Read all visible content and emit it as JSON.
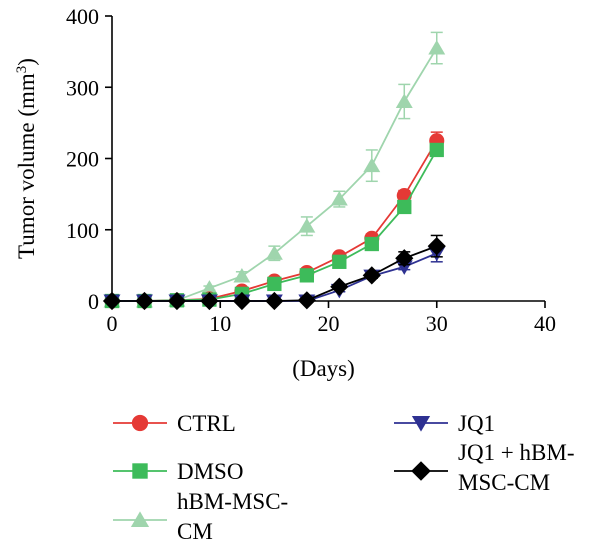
{
  "chart_data": {
    "type": "line",
    "xlabel": "(Days)",
    "ylabel": "Tumor volume (mm",
    "ylabel_sup": "3",
    "ylabel_close": ")",
    "xlim": [
      0,
      40
    ],
    "ylim": [
      0,
      400
    ],
    "xticks": [
      0,
      10,
      20,
      30,
      40
    ],
    "yticks": [
      0,
      100,
      200,
      300,
      400
    ],
    "grid": false,
    "legend_position": "bottom",
    "series": [
      {
        "name": "hBM-MSC-CM",
        "legend_lines": [
          "hBM-MSC-",
          "CM"
        ],
        "color": "#9fd5ad",
        "marker": "triangle",
        "x": [
          0,
          3,
          6,
          9,
          12,
          15,
          18,
          21,
          24,
          27,
          30
        ],
        "y": [
          0,
          0,
          1,
          18,
          35,
          67,
          105,
          143,
          190,
          280,
          355
        ],
        "err": [
          0,
          0,
          0,
          3,
          6,
          10,
          13,
          11,
          22,
          24,
          22
        ]
      },
      {
        "name": "CTRL",
        "legend_lines": [
          "CTRL"
        ],
        "color": "#e53935",
        "marker": "circle",
        "x": [
          0,
          3,
          6,
          9,
          12,
          15,
          18,
          21,
          24,
          27,
          30
        ],
        "y": [
          0,
          0,
          1,
          3,
          14,
          28,
          40,
          62,
          88,
          148,
          225
        ],
        "err": [
          0,
          0,
          0,
          0,
          2,
          3,
          4,
          4,
          6,
          7,
          12
        ]
      },
      {
        "name": "DMSO",
        "legend_lines": [
          "DMSO"
        ],
        "color": "#3dbb5a",
        "marker": "square",
        "x": [
          0,
          3,
          6,
          9,
          12,
          15,
          18,
          21,
          24,
          27,
          30
        ],
        "y": [
          0,
          0,
          1,
          2,
          10,
          24,
          36,
          55,
          80,
          132,
          212
        ],
        "err": [
          0,
          0,
          0,
          0,
          2,
          3,
          3,
          4,
          5,
          6,
          8
        ]
      },
      {
        "name": "JQ1",
        "legend_lines": [
          "JQ1"
        ],
        "color": "#2e3192",
        "marker": "triangle-down",
        "x": [
          0,
          3,
          6,
          9,
          12,
          15,
          18,
          21,
          24,
          27,
          30
        ],
        "y": [
          0,
          0,
          0,
          0,
          0,
          0,
          0,
          15,
          35,
          48,
          67
        ],
        "err": [
          0,
          0,
          0,
          0,
          0,
          0,
          0,
          2,
          3,
          4,
          12
        ]
      },
      {
        "name": "JQ1 + hBM-MSC-CM",
        "legend_lines": [
          "JQ1 + hBM-",
          "MSC-CM"
        ],
        "color": "#000000",
        "marker": "diamond",
        "x": [
          0,
          3,
          6,
          9,
          12,
          15,
          18,
          21,
          24,
          27,
          30
        ],
        "y": [
          0,
          0,
          0,
          0,
          0,
          0,
          1,
          20,
          36,
          60,
          77
        ],
        "err": [
          0,
          0,
          0,
          0,
          0,
          0,
          0,
          3,
          4,
          9,
          15
        ]
      }
    ]
  }
}
